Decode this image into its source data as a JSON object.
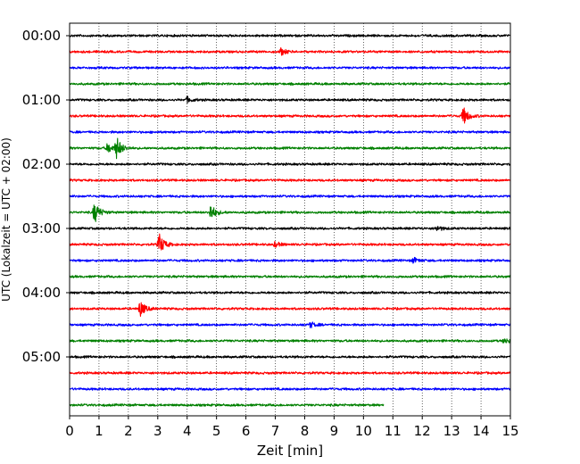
{
  "chart_data": {
    "type": "line",
    "title": "",
    "xlabel": "Zeit  [min]",
    "ylabel": "UTC (Lokalzeit = UTC + 02:00)",
    "xlim": [
      0,
      15
    ],
    "x_ticks": [
      0,
      1,
      2,
      3,
      4,
      5,
      6,
      7,
      8,
      9,
      10,
      11,
      12,
      13,
      14,
      15
    ],
    "x_tick_labels": [
      "0",
      "1",
      "2",
      "3",
      "4",
      "5",
      "6",
      "7",
      "8",
      "9",
      "10",
      "11",
      "12",
      "13",
      "14",
      "15"
    ],
    "y_tick_labels": [
      "00:00",
      "01:00",
      "02:00",
      "03:00",
      "04:00",
      "05:00"
    ],
    "y_tick_rows": [
      0,
      4,
      8,
      12,
      16,
      20
    ],
    "grid": "vertical dotted",
    "row_minutes": 15,
    "color_cycle": [
      "#000000",
      "#ff0000",
      "#0000ff",
      "#008000"
    ],
    "traces": [
      {
        "start": "00:00",
        "color": "#000000",
        "end_min": 15,
        "amp": 1.5,
        "events": []
      },
      {
        "start": "00:15",
        "color": "#ff0000",
        "end_min": 15,
        "amp": 1.5,
        "events": [
          {
            "t": 7.2,
            "a": 4
          }
        ]
      },
      {
        "start": "00:30",
        "color": "#0000ff",
        "end_min": 15,
        "amp": 1.5,
        "events": []
      },
      {
        "start": "00:45",
        "color": "#008000",
        "end_min": 15,
        "amp": 1.5,
        "events": []
      },
      {
        "start": "01:00",
        "color": "#000000",
        "end_min": 15,
        "amp": 1.5,
        "events": [
          {
            "t": 4.0,
            "a": 3
          }
        ]
      },
      {
        "start": "01:15",
        "color": "#ff0000",
        "end_min": 15,
        "amp": 1.5,
        "events": [
          {
            "t": 13.4,
            "a": 10
          }
        ]
      },
      {
        "start": "01:30",
        "color": "#0000ff",
        "end_min": 15,
        "amp": 1.5,
        "events": []
      },
      {
        "start": "01:45",
        "color": "#008000",
        "end_min": 15,
        "amp": 1.5,
        "events": [
          {
            "t": 1.3,
            "a": 6
          },
          {
            "t": 1.6,
            "a": 12
          }
        ]
      },
      {
        "start": "02:00",
        "color": "#000000",
        "end_min": 15,
        "amp": 1.5,
        "events": []
      },
      {
        "start": "02:15",
        "color": "#ff0000",
        "end_min": 15,
        "amp": 1.5,
        "events": []
      },
      {
        "start": "02:30",
        "color": "#0000ff",
        "end_min": 15,
        "amp": 1.5,
        "events": []
      },
      {
        "start": "02:45",
        "color": "#008000",
        "end_min": 15,
        "amp": 1.5,
        "events": [
          {
            "t": 0.85,
            "a": 12
          },
          {
            "t": 4.8,
            "a": 9
          }
        ]
      },
      {
        "start": "03:00",
        "color": "#000000",
        "end_min": 15,
        "amp": 1.5,
        "events": [
          {
            "t": 12.5,
            "a": 3
          }
        ]
      },
      {
        "start": "03:15",
        "color": "#ff0000",
        "end_min": 15,
        "amp": 1.5,
        "events": [
          {
            "t": 3.05,
            "a": 12
          },
          {
            "t": 7.0,
            "a": 3
          }
        ]
      },
      {
        "start": "03:30",
        "color": "#0000ff",
        "end_min": 15,
        "amp": 1.5,
        "events": [
          {
            "t": 11.7,
            "a": 3
          }
        ]
      },
      {
        "start": "03:45",
        "color": "#008000",
        "end_min": 15,
        "amp": 1.5,
        "events": []
      },
      {
        "start": "04:00",
        "color": "#000000",
        "end_min": 15,
        "amp": 1.5,
        "events": []
      },
      {
        "start": "04:15",
        "color": "#ff0000",
        "end_min": 15,
        "amp": 1.5,
        "events": [
          {
            "t": 2.4,
            "a": 9
          }
        ]
      },
      {
        "start": "04:30",
        "color": "#0000ff",
        "end_min": 15,
        "amp": 1.5,
        "events": [
          {
            "t": 8.2,
            "a": 3
          }
        ]
      },
      {
        "start": "04:45",
        "color": "#008000",
        "end_min": 15,
        "amp": 1.5,
        "events": [
          {
            "t": 14.8,
            "a": 3
          }
        ]
      },
      {
        "start": "05:00",
        "color": "#000000",
        "end_min": 15,
        "amp": 1.5,
        "events": []
      },
      {
        "start": "05:15",
        "color": "#ff0000",
        "end_min": 15,
        "amp": 1.5,
        "events": []
      },
      {
        "start": "05:30",
        "color": "#0000ff",
        "end_min": 15,
        "amp": 1.5,
        "events": []
      },
      {
        "start": "05:45",
        "color": "#008000",
        "end_min": 10.7,
        "amp": 1.5,
        "events": []
      }
    ]
  }
}
